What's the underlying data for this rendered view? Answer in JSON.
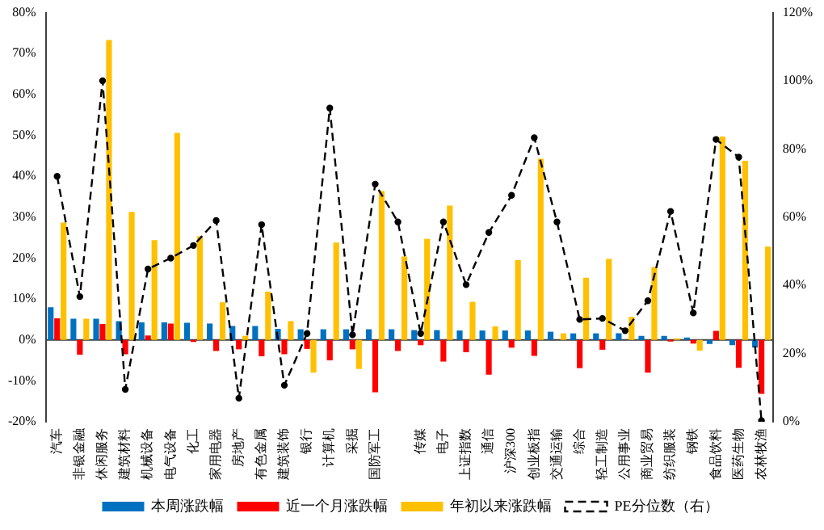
{
  "chart_data": {
    "type": "bar",
    "categories": [
      "汽车",
      "非银金融",
      "休闲服务",
      "建筑材料",
      "机械设备",
      "电气设备",
      "化工",
      "家用电器",
      "房地产",
      "有色金属",
      "建筑装饰",
      "银行",
      "计算机",
      "采掘",
      "国防军工",
      null,
      "传媒",
      "电子",
      "上证指数",
      "通信",
      "沪深300",
      "创业板指",
      "交通运输",
      "综合",
      "轻工制造",
      "公用事业",
      "商业贸易",
      "纺织服装",
      "钢铁",
      "食品饮料",
      "医药生物",
      "农林牧渔"
    ],
    "series": [
      {
        "name": "本周涨跌幅",
        "color": "#0070c0",
        "values": [
          8.0,
          5.2,
          5.2,
          4.6,
          4.3,
          4.3,
          4.2,
          4.0,
          3.4,
          3.4,
          2.7,
          2.6,
          2.6,
          2.6,
          2.6,
          2.6,
          2.4,
          2.4,
          2.3,
          2.3,
          2.3,
          2.3,
          2.0,
          1.6,
          1.6,
          1.6,
          1.0,
          1.0,
          0.6,
          -1.0,
          -1.3,
          -1.9
        ]
      },
      {
        "name": "近一个月涨跌幅",
        "color": "#ff0000",
        "values": [
          5.3,
          -3.6,
          3.9,
          -3.5,
          1.1,
          4.0,
          -0.5,
          -2.7,
          -2.3,
          -4.0,
          -3.5,
          -2.2,
          -5.0,
          -2.3,
          -12.8,
          -2.7,
          -1.3,
          -5.3,
          -3.0,
          -8.5,
          -1.9,
          -3.9,
          null,
          -6.9,
          -2.4,
          null,
          -8.0,
          -0.4,
          -0.9,
          2.2,
          -6.8,
          -13.2
        ]
      },
      {
        "name": "年初以来涨跌幅",
        "color": "#ffc000",
        "values": [
          28.7,
          5.2,
          73.3,
          31.3,
          24.4,
          50.6,
          25.3,
          9.2,
          1.0,
          11.8,
          4.6,
          -8.0,
          23.8,
          -7.1,
          36.4,
          20.4,
          24.7,
          32.8,
          9.3,
          3.3,
          19.5,
          44.3,
          1.6,
          15.2,
          19.8,
          5.6,
          17.8,
          0.4,
          -2.6,
          49.7,
          43.8,
          22.8
        ]
      },
      {
        "name": "PE分位数（右）",
        "type": "line",
        "axis": "y2",
        "color": "#000000",
        "line_style": "dashed",
        "marker": "circle",
        "values": [
          72,
          36.7,
          100,
          9.5,
          44.8,
          48,
          51.7,
          59,
          6.9,
          57.8,
          10.7,
          25.9,
          92,
          25.5,
          69.7,
          58.6,
          25.9,
          58.6,
          40.2,
          55.5,
          66.4,
          83.3,
          58.6,
          30,
          30.3,
          26.7,
          35.5,
          61.7,
          31.9,
          82.8,
          77.6,
          0.3
        ]
      }
    ],
    "ylim": [
      -20,
      80
    ],
    "yticks": [
      {
        "value": -20,
        "label": "-20%"
      },
      {
        "value": -10,
        "label": "-10%"
      },
      {
        "value": 0,
        "label": "0%"
      },
      {
        "value": 10,
        "label": "10%"
      },
      {
        "value": 20,
        "label": "20%"
      },
      {
        "value": 30,
        "label": "30%"
      },
      {
        "value": 40,
        "label": "40%"
      },
      {
        "value": 50,
        "label": "50%"
      },
      {
        "value": 60,
        "label": "60%"
      },
      {
        "value": 70,
        "label": "70%"
      },
      {
        "value": 80,
        "label": "80%"
      }
    ],
    "y2lim": [
      0,
      120
    ],
    "y2ticks": [
      {
        "value": 0,
        "label": "0%"
      },
      {
        "value": 20,
        "label": "20%"
      },
      {
        "value": 40,
        "label": "40%"
      },
      {
        "value": 60,
        "label": "60%"
      },
      {
        "value": 80,
        "label": "80%"
      },
      {
        "value": 100,
        "label": "100%"
      },
      {
        "value": 120,
        "label": "120%"
      }
    ],
    "legend": "bottom"
  }
}
